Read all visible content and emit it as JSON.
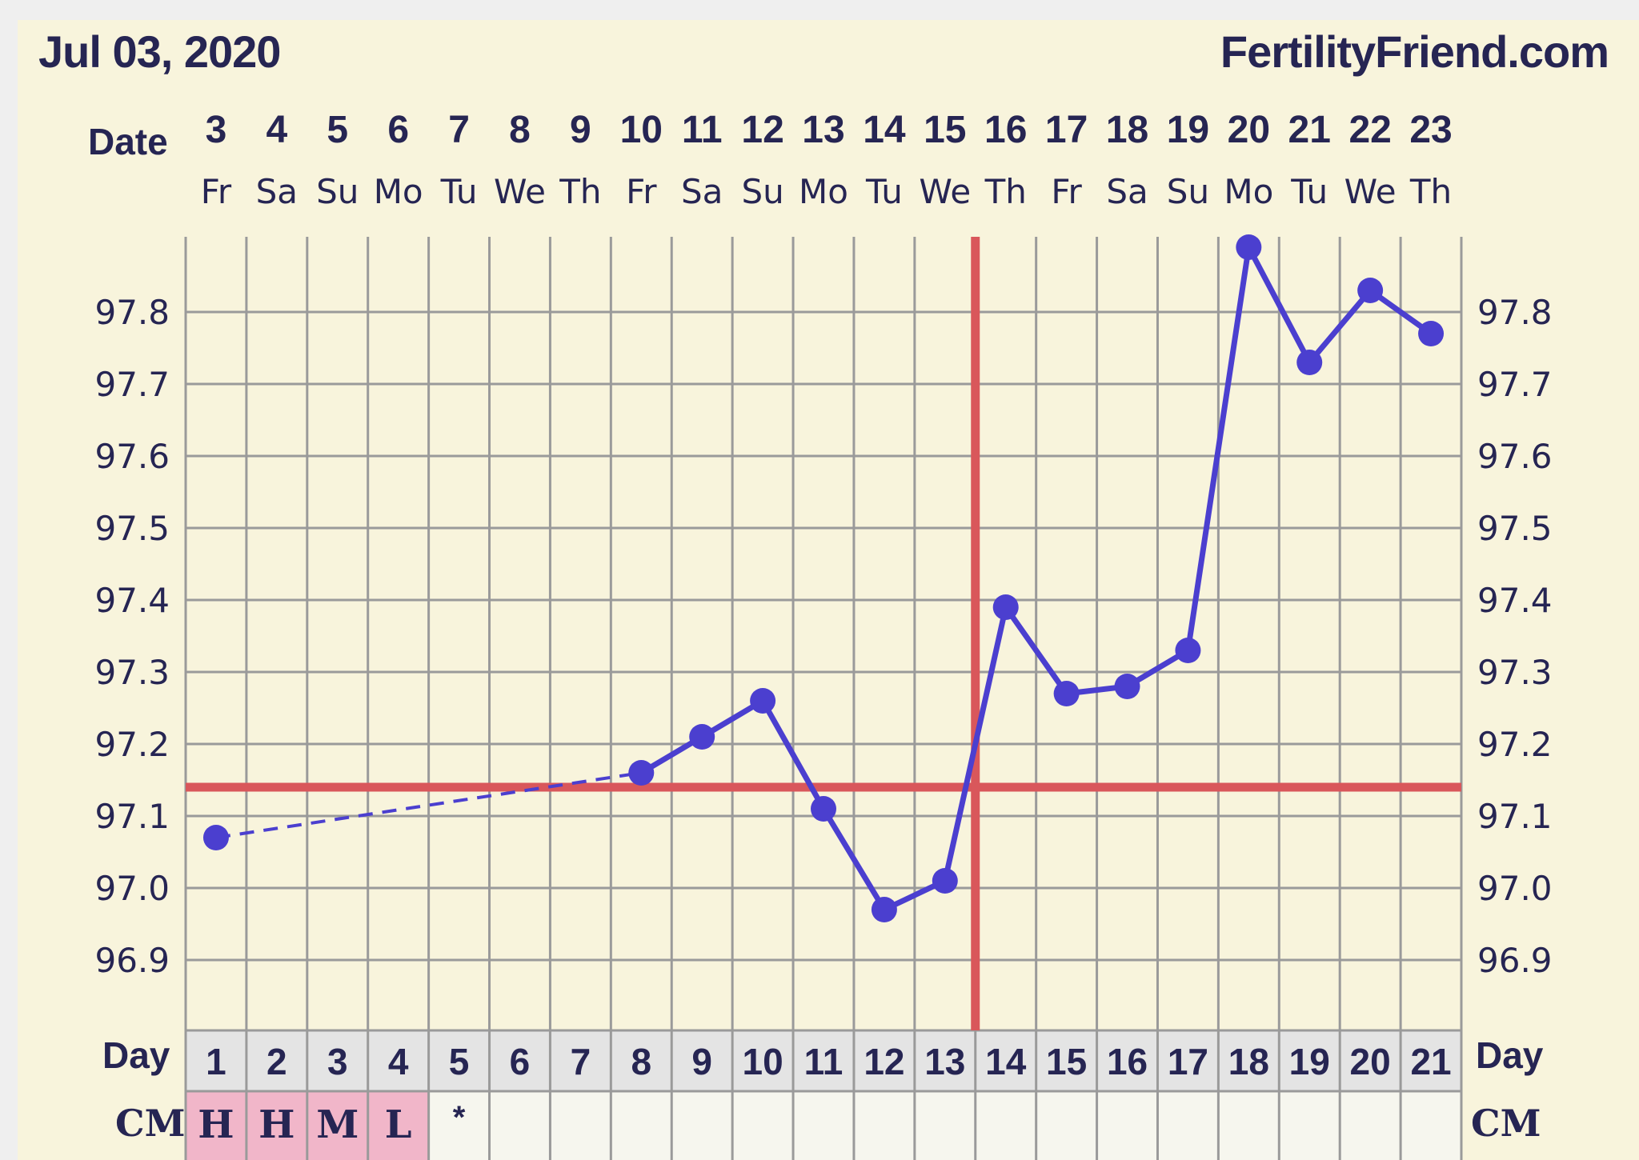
{
  "header": {
    "date": "Jul 03, 2020",
    "brand": "FertilityFriend.com"
  },
  "labels": {
    "date_row": "Date",
    "day_row": "Day",
    "cm_row": "CM"
  },
  "colors": {
    "background": "#f8f4dc",
    "grid": "#9a9a9a",
    "series": "#4b3fcf",
    "coverline": "#d9575b",
    "text": "#262553",
    "cm_highlight": "#f1b6c9",
    "day_row": "#e4e4e4"
  },
  "chart_data": {
    "type": "line",
    "title": "",
    "xlabel": "Day",
    "ylabel": "",
    "ylim": [
      96.8,
      97.9
    ],
    "yticks": [
      96.9,
      97.0,
      97.1,
      97.2,
      97.3,
      97.4,
      97.5,
      97.6,
      97.7,
      97.8
    ],
    "ytick_labels": [
      "96.9",
      "97.0",
      "97.1",
      "97.2",
      "97.3",
      "97.4",
      "97.5",
      "97.6",
      "97.7",
      "97.8"
    ],
    "dates": [
      "3",
      "4",
      "5",
      "6",
      "7",
      "8",
      "9",
      "10",
      "11",
      "12",
      "13",
      "14",
      "15",
      "16",
      "17",
      "18",
      "19",
      "20",
      "21",
      "22",
      "23"
    ],
    "weekdays": [
      "Fr",
      "Sa",
      "Su",
      "Mo",
      "Tu",
      "We",
      "Th",
      "Fr",
      "Sa",
      "Su",
      "Mo",
      "Tu",
      "We",
      "Th",
      "Fr",
      "Sa",
      "Su",
      "Mo",
      "Tu",
      "We",
      "Th"
    ],
    "cycle_days": [
      "1",
      "2",
      "3",
      "4",
      "5",
      "6",
      "7",
      "8",
      "9",
      "10",
      "11",
      "12",
      "13",
      "14",
      "15",
      "16",
      "17",
      "18",
      "19",
      "20",
      "21"
    ],
    "series": [
      {
        "values": [
          97.07,
          null,
          null,
          null,
          null,
          null,
          null,
          97.16,
          97.21,
          97.26,
          97.11,
          96.97,
          97.01,
          97.39,
          97.27,
          97.28,
          97.33,
          97.89,
          97.73,
          97.83,
          97.77
        ]
      }
    ],
    "dashed_gaps": [
      [
        1,
        8
      ]
    ],
    "coverline": 97.14,
    "ovulation_day": 13,
    "cervical_mucus": [
      "H",
      "H",
      "M",
      "L",
      "*",
      "",
      "",
      "",
      "",
      "",
      "",
      "",
      "",
      "",
      "",
      "",
      "",
      "",
      "",
      "",
      ""
    ],
    "grid": true
  }
}
